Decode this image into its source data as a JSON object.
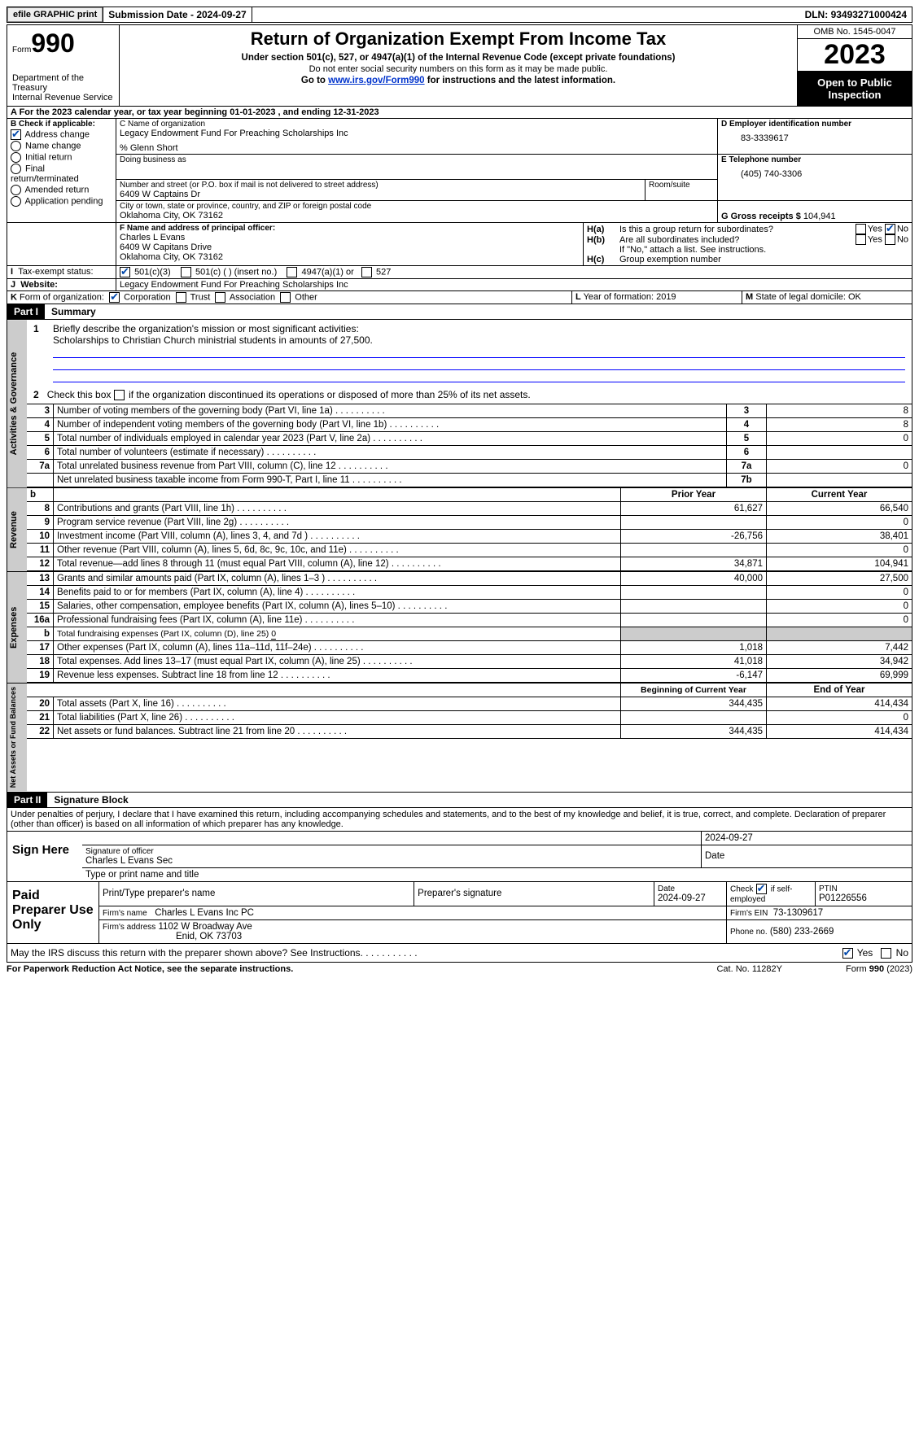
{
  "topbar": {
    "efile": "efile GRAPHIC print",
    "sub_label": "Submission Date - ",
    "sub_date": "2024-09-27",
    "dln_label": "DLN: ",
    "dln": "93493271000424"
  },
  "header": {
    "form_word": "Form",
    "form_no": "990",
    "title": "Return of Organization Exempt From Income Tax",
    "sub1": "Under section 501(c), 527, or 4947(a)(1) of the Internal Revenue Code (except private foundations)",
    "sub2": "Do not enter social security numbers on this form as it may be made public.",
    "sub3_pre": "Go to ",
    "sub3_link": "www.irs.gov/Form990",
    "sub3_post": " for instructions and the latest information.",
    "dept": "Department of the Treasury\nInternal Revenue Service",
    "omb_label": "OMB No. ",
    "omb": "1545-0047",
    "year": "2023",
    "open": "Open to Public Inspection"
  },
  "A": {
    "line": "A For the 2023 calendar year, or tax year beginning ",
    "d1": "01-01-2023",
    "mid": " , and ending ",
    "d2": "12-31-2023"
  },
  "B": {
    "title": "B Check if applicable:",
    "items": [
      "Address change",
      "Name change",
      "Initial return",
      "Final return/terminated",
      "Amended return",
      "Application pending"
    ],
    "checked": [
      true,
      false,
      false,
      false,
      false,
      false
    ]
  },
  "C": {
    "lbl_name": "C Name of organization",
    "org": "Legacy Endowment Fund For Preaching Scholarships Inc",
    "care": "% Glenn Short",
    "dba_lbl": "Doing business as",
    "addr_lbl": "Number and street (or P.O. box if mail is not delivered to street address)",
    "room_lbl": "Room/suite",
    "addr": "6409 W Captains Dr",
    "city_lbl": "City or town, state or province, country, and ZIP or foreign postal code",
    "city": "Oklahoma City, OK  73162"
  },
  "D": {
    "lbl": "D Employer identification number",
    "val": "83-3339617"
  },
  "E": {
    "lbl": "E Telephone number",
    "val": "(405) 740-3306"
  },
  "G": {
    "lbl": "G Gross receipts $",
    "val": "104,941"
  },
  "F": {
    "lbl": "F  Name and address of principal officer:",
    "l1": "Charles L Evans",
    "l2": "6409 W Capitans Drive",
    "l3": "Oklahoma City, OK  73162"
  },
  "H": {
    "a_lbl": "H(a)",
    "a_txt": "Is this a group return for subordinates?",
    "a_yes": "Yes",
    "a_no": "No",
    "a_checked": "no",
    "b_lbl": "H(b)",
    "b_txt": "Are all subordinates included?",
    "b_note": "If \"No,\" attach a list. See instructions.",
    "c_lbl": "H(c)",
    "c_txt": "Group exemption number"
  },
  "I": {
    "lbl": "I",
    "txt": "Tax-exempt status:",
    "opts": [
      "501(c)(3)",
      "501(c) (  ) (insert no.)",
      "4947(a)(1) or",
      "527"
    ],
    "checked": 0
  },
  "J": {
    "lbl": "J",
    "txt": "Website:",
    "val": "Legacy Endowment Fund For Preaching Scholarships Inc"
  },
  "K": {
    "lbl": "K",
    "txt": "Form of organization:",
    "opts": [
      "Corporation",
      "Trust",
      "Association",
      "Other"
    ],
    "checked": 0
  },
  "L": {
    "lbl": "L",
    "txt": "Year of formation: ",
    "val": "2019"
  },
  "M": {
    "lbl": "M",
    "txt": "State of legal domicile: ",
    "val": "OK"
  },
  "part1": {
    "hdr": "Part I",
    "title": "Summary"
  },
  "mission": {
    "num": "1",
    "txt": "Briefly describe the organization's mission or most significant activities:",
    "val": "Scholarships to Christian Church ministrial students in amounts of 27,500."
  },
  "line2": {
    "num": "2",
    "txt": "Check this box ",
    "post": " if the organization discontinued its operations or disposed of more than 25% of its net assets."
  },
  "gov_rows": [
    {
      "n": "3",
      "t": "Number of voting members of the governing body (Part VI, line 1a)",
      "box": "3",
      "v": "8"
    },
    {
      "n": "4",
      "t": "Number of independent voting members of the governing body (Part VI, line 1b)",
      "box": "4",
      "v": "8"
    },
    {
      "n": "5",
      "t": "Total number of individuals employed in calendar year 2023 (Part V, line 2a)",
      "box": "5",
      "v": "0"
    },
    {
      "n": "6",
      "t": "Total number of volunteers (estimate if necessary)",
      "box": "6",
      "v": ""
    },
    {
      "n": "7a",
      "t": "Total unrelated business revenue from Part VIII, column (C), line 12",
      "box": "7a",
      "v": "0"
    },
    {
      "n": "",
      "t": "Net unrelated business taxable income from Form 990-T, Part I, line 11",
      "box": "7b",
      "v": ""
    }
  ],
  "sections": {
    "gov": "Activities & Governance",
    "rev": "Revenue",
    "exp": "Expenses",
    "net": "Net Assets or Fund Balances"
  },
  "col_hdrs": {
    "b": "b",
    "prior": "Prior Year",
    "current": "Current Year"
  },
  "rev_rows": [
    {
      "n": "8",
      "t": "Contributions and grants (Part VIII, line 1h)",
      "p": "61,627",
      "c": "66,540"
    },
    {
      "n": "9",
      "t": "Program service revenue (Part VIII, line 2g)",
      "p": "",
      "c": "0"
    },
    {
      "n": "10",
      "t": "Investment income (Part VIII, column (A), lines 3, 4, and 7d )",
      "p": "-26,756",
      "c": "38,401"
    },
    {
      "n": "11",
      "t": "Other revenue (Part VIII, column (A), lines 5, 6d, 8c, 9c, 10c, and 11e)",
      "p": "",
      "c": "0"
    },
    {
      "n": "12",
      "t": "Total revenue—add lines 8 through 11 (must equal Part VIII, column (A), line 12)",
      "p": "34,871",
      "c": "104,941"
    }
  ],
  "exp_rows": [
    {
      "n": "13",
      "t": "Grants and similar amounts paid (Part IX, column (A), lines 1–3 )",
      "p": "40,000",
      "c": "27,500"
    },
    {
      "n": "14",
      "t": "Benefits paid to or for members (Part IX, column (A), line 4)",
      "p": "",
      "c": "0"
    },
    {
      "n": "15",
      "t": "Salaries, other compensation, employee benefits (Part IX, column (A), lines 5–10)",
      "p": "",
      "c": "0"
    },
    {
      "n": "16a",
      "t": "Professional fundraising fees (Part IX, column (A), line 11e)",
      "p": "",
      "c": "0"
    },
    {
      "n": "b",
      "t": "Total fundraising expenses (Part IX, column (D), line 25)",
      "sp": "0",
      "shaded": true
    },
    {
      "n": "17",
      "t": "Other expenses (Part IX, column (A), lines 11a–11d, 11f–24e)",
      "p": "1,018",
      "c": "7,442"
    },
    {
      "n": "18",
      "t": "Total expenses. Add lines 13–17 (must equal Part IX, column (A), line 25)",
      "p": "41,018",
      "c": "34,942"
    },
    {
      "n": "19",
      "t": "Revenue less expenses. Subtract line 18 from line 12",
      "p": "-6,147",
      "c": "69,999"
    }
  ],
  "net_hdrs": {
    "prior": "Beginning of Current Year",
    "current": "End of Year"
  },
  "net_rows": [
    {
      "n": "20",
      "t": "Total assets (Part X, line 16)",
      "p": "344,435",
      "c": "414,434"
    },
    {
      "n": "21",
      "t": "Total liabilities (Part X, line 26)",
      "p": "",
      "c": "0"
    },
    {
      "n": "22",
      "t": "Net assets or fund balances. Subtract line 21 from line 20",
      "p": "344,435",
      "c": "414,434"
    }
  ],
  "part2": {
    "hdr": "Part II",
    "title": "Signature Block",
    "decl": "Under penalties of perjury, I declare that I have examined this return, including accompanying schedules and statements, and to the best of my knowledge and belief, it is true, correct, and complete. Declaration of preparer (other than officer) is based on all information of which preparer has any knowledge."
  },
  "sign": {
    "lbl": "Sign Here",
    "sig_lbl": "Signature of officer",
    "date_lbl": "Date",
    "date": "2024-09-27",
    "name": "Charles L Evans  Sec",
    "name_lbl": "Type or print name and title"
  },
  "paid": {
    "lbl": "Paid Preparer Use Only",
    "h1": "Print/Type preparer's name",
    "h2": "Preparer's signature",
    "h3": "Date",
    "h4": "Check",
    "h4b": "if self-employed",
    "h5": "PTIN",
    "date": "2024-09-27",
    "ptin": "P01226556",
    "self_checked": true,
    "firm_lbl": "Firm's name",
    "firm": "Charles L Evans Inc PC",
    "ein_lbl": "Firm's EIN",
    "ein": "73-1309617",
    "addr_lbl": "Firm's address",
    "addr1": "1102 W Broadway Ave",
    "addr2": "Enid, OK  73703",
    "phone_lbl": "Phone no.",
    "phone": "(580) 233-2669"
  },
  "discuss": {
    "txt": "May the IRS discuss this return with the preparer shown above? See Instructions.",
    "yes": "Yes",
    "no": "No",
    "checked": "yes"
  },
  "footer": {
    "left": "For Paperwork Reduction Act Notice, see the separate instructions.",
    "cat": "Cat. No. 11282Y",
    "right": "Form ",
    "form": "990",
    "yr": " (2023)"
  }
}
